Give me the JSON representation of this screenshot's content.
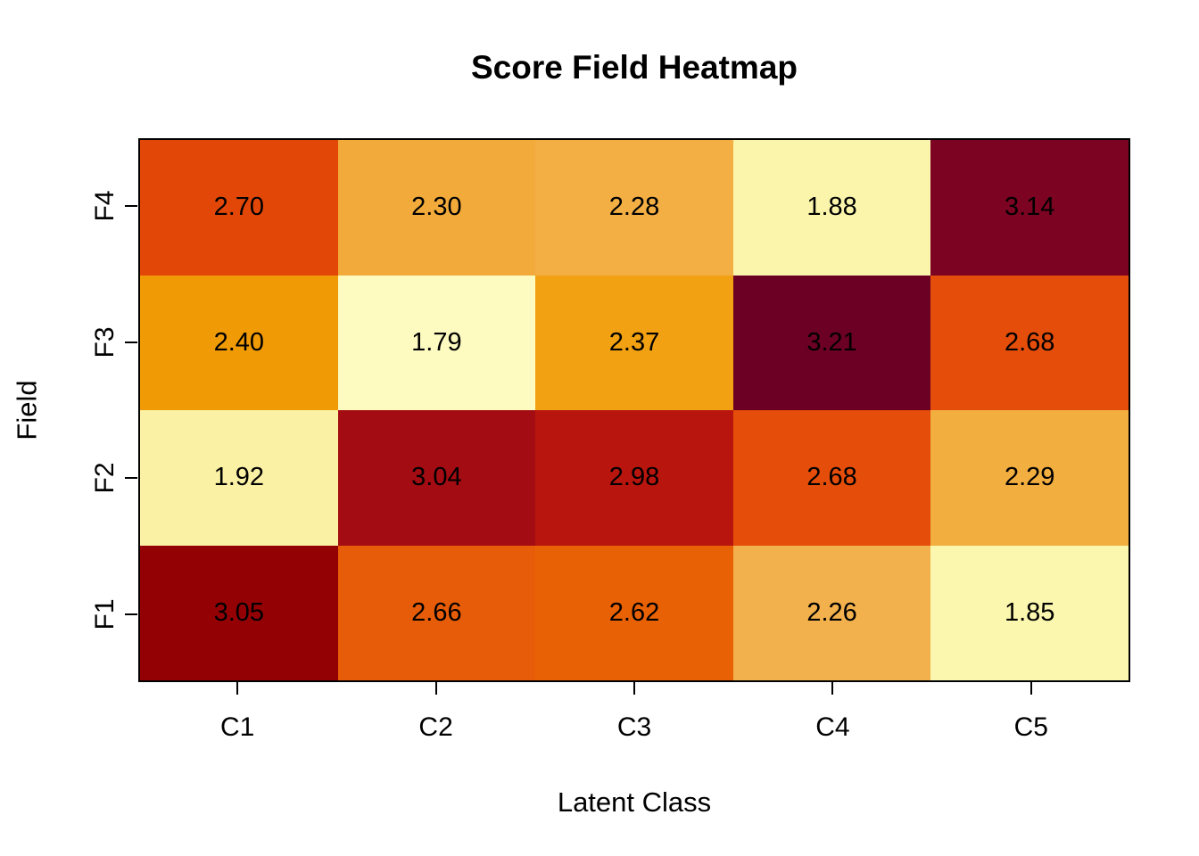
{
  "chart_data": {
    "type": "heatmap",
    "title": "Score Field Heatmap",
    "xlabel": "Latent Class",
    "ylabel": "Field",
    "x_categories": [
      "C1",
      "C2",
      "C3",
      "C4",
      "C5"
    ],
    "y_categories_top_to_bottom": [
      "F4",
      "F3",
      "F2",
      "F1"
    ],
    "y_categories_bottom_to_top": [
      "F1",
      "F2",
      "F3",
      "F4"
    ],
    "values_top_to_bottom": [
      [
        2.7,
        2.3,
        2.28,
        1.88,
        3.14
      ],
      [
        2.4,
        1.79,
        2.37,
        3.21,
        2.68
      ],
      [
        1.92,
        3.04,
        2.98,
        2.68,
        2.29
      ],
      [
        3.05,
        2.66,
        2.62,
        2.26,
        1.85
      ]
    ],
    "cell_labels_top_to_bottom": [
      [
        "2.70",
        "2.30",
        "2.28",
        "1.88",
        "3.14"
      ],
      [
        "2.40",
        "1.79",
        "2.37",
        "3.21",
        "2.68"
      ],
      [
        "1.92",
        "3.04",
        "2.98",
        "2.68",
        "2.29"
      ],
      [
        "3.05",
        "2.66",
        "2.62",
        "2.26",
        "1.85"
      ]
    ],
    "cell_colors_top_to_bottom": [
      [
        "#E34708",
        "#F2AB3A",
        "#F3AE44",
        "#FBF5AC",
        "#7C0322"
      ],
      [
        "#F09A06",
        "#FDFBC0",
        "#F1A112",
        "#6B0024",
        "#E44D0A"
      ],
      [
        "#FAF1A4",
        "#A30C12",
        "#B8150E",
        "#E44D0A",
        "#F3AE40"
      ],
      [
        "#930105",
        "#E75C08",
        "#E96105",
        "#F2B14C",
        "#FBF7AE"
      ]
    ],
    "value_range": [
      1.79,
      3.21
    ],
    "palette_low_color": "#FDFBC0",
    "palette_high_color": "#6B0024",
    "palette_name": "YlOrRd (low = pale yellow, high = dark maroon)",
    "legend_position": "none",
    "grid": "off",
    "text_color": "#000000",
    "axis_color": "#000000"
  }
}
